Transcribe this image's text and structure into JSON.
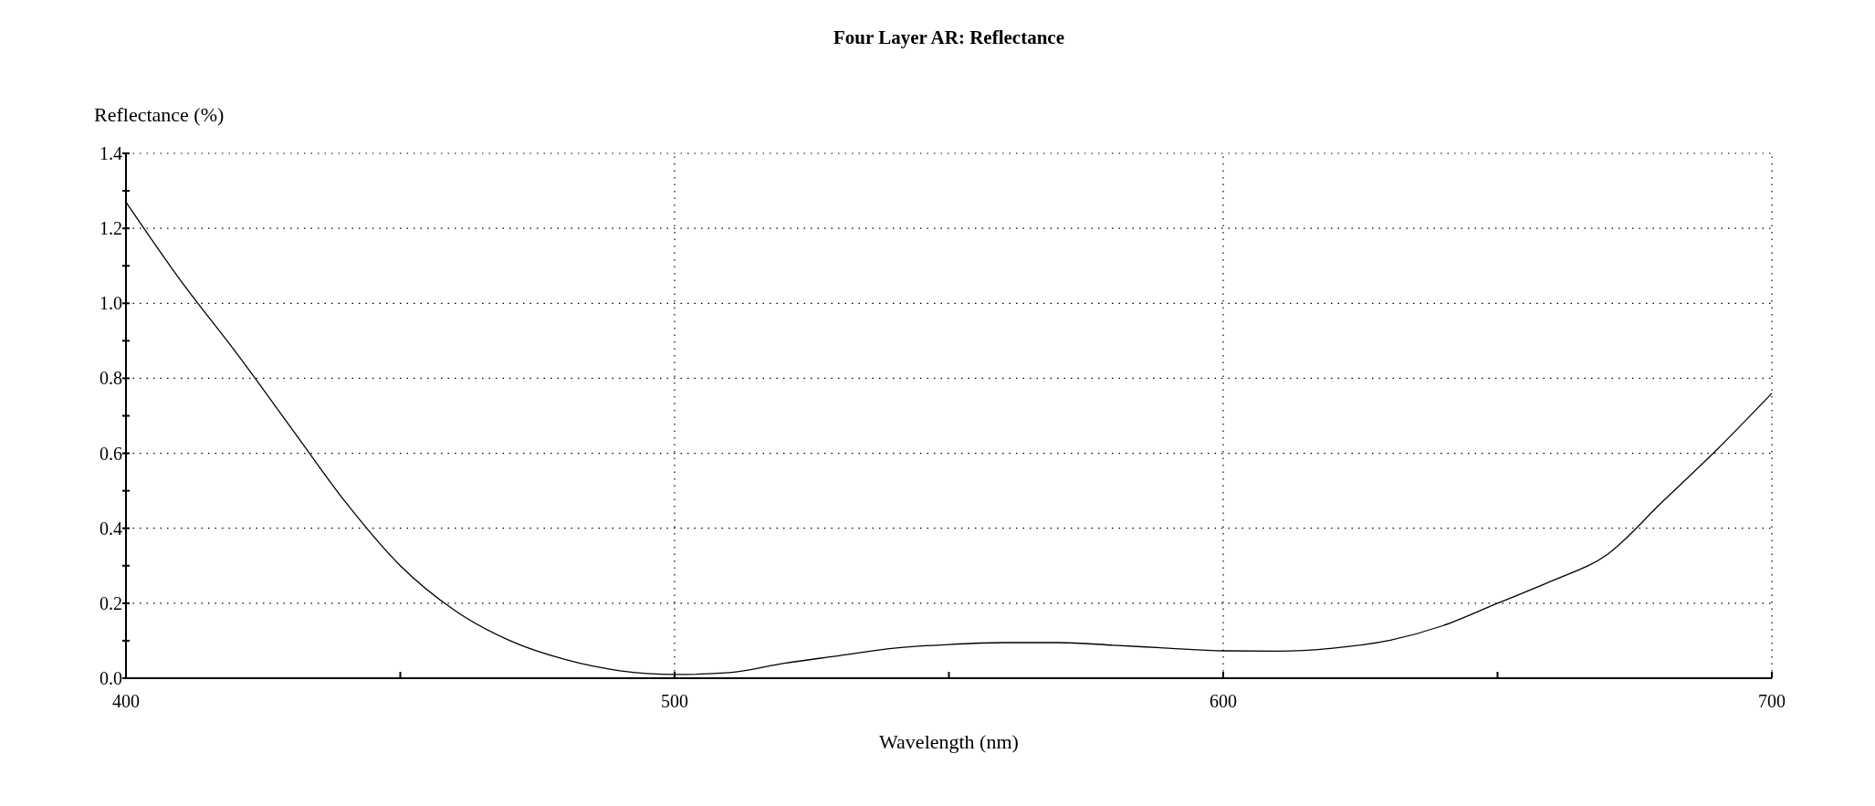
{
  "chart_data": {
    "type": "line",
    "title": "Four Layer AR: Reflectance",
    "xlabel": "Wavelength (nm)",
    "ylabel": "Reflectance (%)",
    "x": [
      400,
      410,
      420,
      430,
      440,
      450,
      460,
      470,
      480,
      490,
      500,
      510,
      520,
      530,
      540,
      550,
      560,
      570,
      580,
      590,
      600,
      610,
      620,
      630,
      640,
      650,
      660,
      670,
      680,
      690,
      700
    ],
    "series": [
      {
        "color": "#000000",
        "values": [
          1.27,
          1.06,
          0.87,
          0.67,
          0.47,
          0.3,
          0.18,
          0.1,
          0.05,
          0.02,
          0.01,
          0.015,
          0.04,
          0.06,
          0.08,
          0.09,
          0.095,
          0.095,
          0.088,
          0.08,
          0.073,
          0.072,
          0.08,
          0.1,
          0.14,
          0.2,
          0.26,
          0.33,
          0.47,
          0.61,
          0.76
        ]
      }
    ],
    "xlim": [
      400,
      700
    ],
    "ylim": [
      0,
      1.4
    ],
    "xticks": [
      400,
      {
        "value": 450,
        "label": null
      },
      500,
      {
        "value": 550,
        "label": null
      },
      600,
      {
        "value": 650,
        "label": null
      },
      700
    ],
    "yticks": [
      {
        "value": 0,
        "label": "0.0"
      },
      {
        "value": 0.1,
        "label": null
      },
      0.2,
      {
        "value": 0.3,
        "label": null
      },
      0.4,
      {
        "value": 0.5,
        "label": null
      },
      0.6,
      {
        "value": 0.7,
        "label": null
      },
      0.8,
      {
        "value": 0.9,
        "label": null
      },
      {
        "value": 1,
        "label": "1.0"
      },
      {
        "value": 1.1,
        "label": null
      },
      1.2,
      {
        "value": 1.3,
        "label": null
      },
      1.4
    ],
    "grid": true,
    "line_style": "solid",
    "marker": "none"
  }
}
